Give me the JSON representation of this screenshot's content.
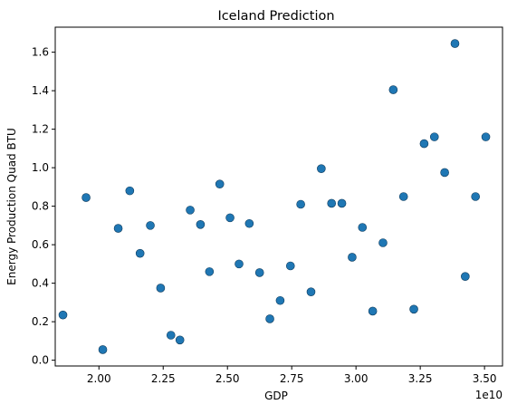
{
  "chart_data": {
    "type": "scatter",
    "title": "Iceland Prediction",
    "xlabel": "GDP",
    "ylabel": "Energy Production Quad BTU",
    "x_offset_label": "1e10",
    "xlim": [
      1.83,
      3.57
    ],
    "ylim": [
      -0.03,
      1.73
    ],
    "x_ticks": [
      2.0,
      2.25,
      2.5,
      2.75,
      3.0,
      3.25,
      3.5
    ],
    "x_tick_labels": [
      "2.00",
      "2.25",
      "2.50",
      "2.75",
      "3.00",
      "3.25",
      "3.50"
    ],
    "y_ticks": [
      0.0,
      0.2,
      0.4,
      0.6,
      0.8,
      1.0,
      1.2,
      1.4,
      1.6
    ],
    "y_tick_labels": [
      "0.0",
      "0.2",
      "0.4",
      "0.6",
      "0.8",
      "1.0",
      "1.2",
      "1.4",
      "1.6"
    ],
    "grid": false,
    "marker_color": "#1f77b4",
    "marker_edge_color": "#0f3c5e",
    "points": [
      {
        "x": 1.86,
        "y": 0.235
      },
      {
        "x": 1.95,
        "y": 0.845
      },
      {
        "x": 2.015,
        "y": 0.055
      },
      {
        "x": 2.075,
        "y": 0.685
      },
      {
        "x": 2.12,
        "y": 0.88
      },
      {
        "x": 2.16,
        "y": 0.555
      },
      {
        "x": 2.2,
        "y": 0.7
      },
      {
        "x": 2.24,
        "y": 0.375
      },
      {
        "x": 2.28,
        "y": 0.13
      },
      {
        "x": 2.315,
        "y": 0.105
      },
      {
        "x": 2.355,
        "y": 0.78
      },
      {
        "x": 2.395,
        "y": 0.705
      },
      {
        "x": 2.43,
        "y": 0.46
      },
      {
        "x": 2.47,
        "y": 0.915
      },
      {
        "x": 2.51,
        "y": 0.74
      },
      {
        "x": 2.545,
        "y": 0.5
      },
      {
        "x": 2.585,
        "y": 0.71
      },
      {
        "x": 2.625,
        "y": 0.455
      },
      {
        "x": 2.665,
        "y": 0.215
      },
      {
        "x": 2.705,
        "y": 0.31
      },
      {
        "x": 2.745,
        "y": 0.49
      },
      {
        "x": 2.785,
        "y": 0.81
      },
      {
        "x": 2.825,
        "y": 0.355
      },
      {
        "x": 2.865,
        "y": 0.995
      },
      {
        "x": 2.905,
        "y": 0.815
      },
      {
        "x": 2.945,
        "y": 0.815
      },
      {
        "x": 2.985,
        "y": 0.535
      },
      {
        "x": 3.025,
        "y": 0.69
      },
      {
        "x": 3.065,
        "y": 0.255
      },
      {
        "x": 3.105,
        "y": 0.61
      },
      {
        "x": 3.145,
        "y": 1.405
      },
      {
        "x": 3.185,
        "y": 0.85
      },
      {
        "x": 3.225,
        "y": 0.265
      },
      {
        "x": 3.265,
        "y": 1.125
      },
      {
        "x": 3.305,
        "y": 1.16
      },
      {
        "x": 3.345,
        "y": 0.975
      },
      {
        "x": 3.385,
        "y": 1.645
      },
      {
        "x": 3.425,
        "y": 0.435
      },
      {
        "x": 3.465,
        "y": 0.85
      },
      {
        "x": 3.505,
        "y": 1.16
      }
    ]
  }
}
